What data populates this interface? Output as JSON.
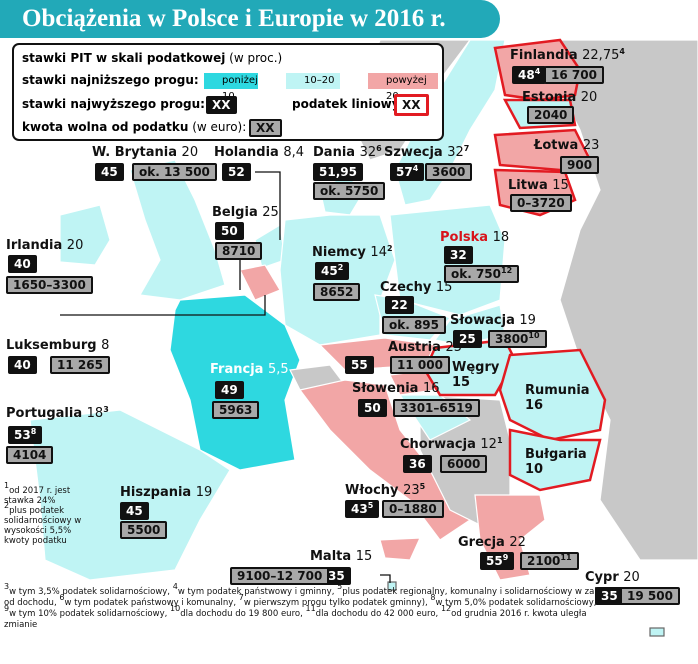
{
  "header": {
    "title": "Obciążenia w Polsce i Europie w 2016 r."
  },
  "legend": {
    "pit": "stawki PIT w skali podatkowej",
    "pit_unit": "(w proc.)",
    "lowest": "stawki najniższego progu:",
    "low": "poniżej 10",
    "mid": "10–20",
    "high": "powyżej 20",
    "highest": "stawki najwyższego progu:",
    "highest_sample": "XX",
    "linear": "podatek liniowy:",
    "linear_sample": "XX",
    "free": "kwota wolna od podatku",
    "free_unit": "(w euro):",
    "free_sample": "XX"
  },
  "countries": [
    {
      "name": "Finlandia",
      "rate": "22,75",
      "rate_note": "4",
      "top": "48",
      "top_note": "4",
      "free": "16 700"
    },
    {
      "name": "Estonia",
      "rate": "20",
      "free": "2040"
    },
    {
      "name": "Łotwa",
      "rate": "23",
      "free": "900"
    },
    {
      "name": "Litwa",
      "rate": "15",
      "free": "0–3720"
    },
    {
      "name": "W. Brytania",
      "rate": "20",
      "top": "45",
      "free": "ok. 13 500"
    },
    {
      "name": "Holandia",
      "rate": "8,4",
      "top": "52"
    },
    {
      "name": "Dania",
      "rate": "32",
      "rate_note": "6",
      "top": "51,95",
      "free": "ok. 5750"
    },
    {
      "name": "Szwecja",
      "rate": "32",
      "rate_note": "7",
      "top": "57",
      "top_note": "4",
      "free": "3600"
    },
    {
      "name": "Belgia",
      "rate": "25",
      "top": "50",
      "free": "8710"
    },
    {
      "name": "Irlandia",
      "rate": "20",
      "top": "40",
      "free": "1650–3300"
    },
    {
      "name": "Niemcy",
      "rate": "14",
      "rate_note": "2",
      "top": "45",
      "top_note": "2",
      "free": "8652"
    },
    {
      "name": "Polska",
      "rate": "18",
      "top": "32",
      "free": "ok. 750",
      "free_note": "12"
    },
    {
      "name": "Czechy",
      "rate": "15",
      "top": "22",
      "free": "ok. 895"
    },
    {
      "name": "Luksemburg",
      "rate": "8",
      "top": "40",
      "free": "11 265"
    },
    {
      "name": "Francja",
      "rate": "5,5",
      "top": "49",
      "free": "5963"
    },
    {
      "name": "Austria",
      "rate": "25",
      "top": "55",
      "free": "11 000"
    },
    {
      "name": "Słowacja",
      "rate": "19",
      "top": "25",
      "free": "3800",
      "free_note": "10"
    },
    {
      "name": "Węgry",
      "rate": "15"
    },
    {
      "name": "Rumunia",
      "rate": "16"
    },
    {
      "name": "Słowenia",
      "rate": "16",
      "top": "50",
      "free": "3301–6519"
    },
    {
      "name": "Portugalia",
      "rate": "18",
      "rate_note": "3",
      "top": "53",
      "top_note": "8",
      "free": "4104"
    },
    {
      "name": "Chorwacja",
      "rate": "12",
      "rate_note": "1",
      "top": "36",
      "free": "6000"
    },
    {
      "name": "Bułgaria",
      "rate": "10"
    },
    {
      "name": "Hiszpania",
      "rate": "19",
      "top": "45",
      "free": "5500"
    },
    {
      "name": "Włochy",
      "rate": "23",
      "rate_note": "5",
      "top": "43",
      "top_note": "5",
      "free": "0–1880"
    },
    {
      "name": "Malta",
      "rate": "15",
      "top": "35",
      "free": "9100–12 700"
    },
    {
      "name": "Grecja",
      "rate": "22",
      "top": "55",
      "top_note": "9",
      "free": "2100",
      "free_note": "11"
    },
    {
      "name": "Cypr",
      "rate": "20",
      "top": "35",
      "free": "19 500"
    }
  ],
  "footnotes": [
    {
      "number": "1",
      "text": "od 2017 r. jest stawka 24%"
    },
    {
      "number": "2",
      "text": "plus podatek solidarnościowy w wysokości 5,5% kwoty podatku"
    },
    {
      "number": "3",
      "text": "w tym 3,5% podatek solidarnościowy,"
    },
    {
      "number": "4",
      "text": "w tym podatek państwowy i gminny,"
    },
    {
      "number": "5",
      "text": "plus podatek regionalny, komunalny i solidarnościowy w zal. od dochodu,"
    },
    {
      "number": "6",
      "text": "w tym podatek państwowy i komunalny,"
    },
    {
      "number": "7",
      "text": "w pierwszym progu tylko podatek gminny),"
    },
    {
      "number": "8",
      "text": "w tym 5,0% podatek solidarnościowy,"
    },
    {
      "number": "9",
      "text": "w tym 10% podatek solidarnościowy,"
    },
    {
      "number": "10",
      "text": "dla dochodu do 19 800 euro,"
    },
    {
      "number": "11",
      "text": "dla dochodu do 42 000 euro,"
    },
    {
      "number": "12",
      "text": "od grudnia 2016 r. kwota uległa zmianie"
    }
  ]
}
